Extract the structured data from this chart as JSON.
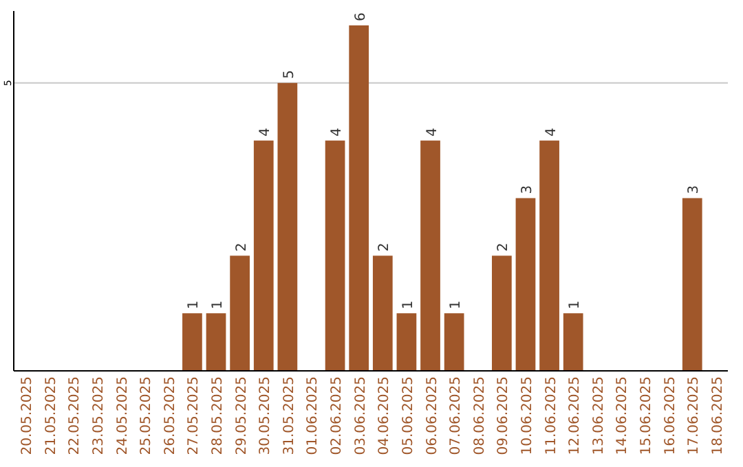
{
  "chart_data": {
    "type": "bar",
    "categories": [
      "20.05.2025",
      "21.05.2025",
      "22.05.2025",
      "23.05.2025",
      "24.05.2025",
      "25.05.2025",
      "26.05.2025",
      "27.05.2025",
      "28.05.2025",
      "29.05.2025",
      "30.05.2025",
      "31.05.2025",
      "01.06.2025",
      "02.06.2025",
      "03.06.2025",
      "04.06.2025",
      "05.06.2025",
      "06.06.2025",
      "07.06.2025",
      "08.06.2025",
      "09.06.2025",
      "10.06.2025",
      "11.06.2025",
      "12.06.2025",
      "13.06.2025",
      "14.06.2025",
      "15.06.2025",
      "16.06.2025",
      "17.06.2025",
      "18.06.2025"
    ],
    "values": [
      0,
      0,
      0,
      0,
      0,
      0,
      0,
      1,
      1,
      2,
      4,
      5,
      0,
      4,
      6,
      2,
      1,
      4,
      1,
      0,
      2,
      3,
      4,
      1,
      0,
      0,
      0,
      0,
      3,
      0
    ],
    "value_labels": [
      null,
      null,
      null,
      null,
      null,
      null,
      null,
      "1",
      "1",
      "2",
      "4",
      "5",
      null,
      "4",
      "6",
      "2",
      "1",
      "4",
      "1",
      null,
      "2",
      "3",
      "4",
      "1",
      null,
      null,
      null,
      null,
      "3",
      null
    ],
    "color": "#a0572a",
    "ylim": [
      0,
      6.25
    ],
    "yticks": [
      5
    ],
    "grid": "y"
  }
}
